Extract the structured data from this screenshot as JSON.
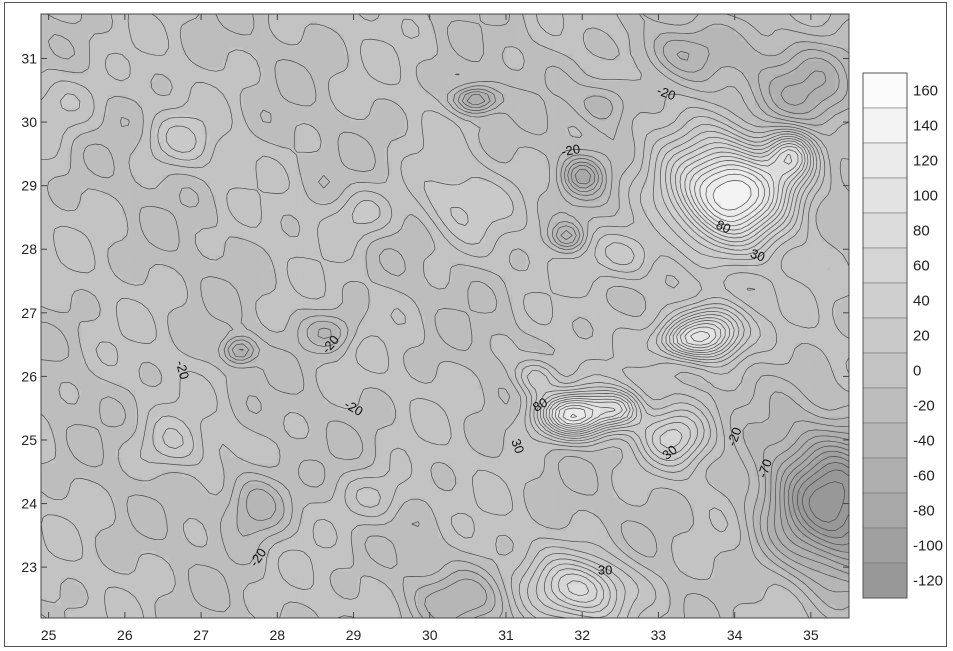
{
  "x_axis": {
    "ticks": [
      25,
      26,
      27,
      28,
      29,
      30,
      31,
      32,
      33,
      34,
      35
    ],
    "labels": [
      "25",
      "26",
      "27",
      "28",
      "29",
      "30",
      "31",
      "32",
      "33",
      "34",
      "35"
    ],
    "range": [
      24.9,
      35.5
    ]
  },
  "y_axis": {
    "ticks": [
      23,
      24,
      25,
      26,
      27,
      28,
      29,
      30,
      31
    ],
    "labels": [
      "23",
      "24",
      "25",
      "26",
      "27",
      "28",
      "29",
      "30",
      "31"
    ],
    "range": [
      22.2,
      31.7
    ]
  },
  "legend": {
    "values": [
      160,
      140,
      120,
      100,
      80,
      60,
      40,
      20,
      0,
      -20,
      -40,
      -60,
      -80,
      -100,
      -120
    ],
    "labels": [
      "160",
      "140",
      "120",
      "100",
      "80",
      "60",
      "40",
      "20",
      "0",
      "-20",
      "-40",
      "-60",
      "-80",
      "-100",
      "-120"
    ],
    "colors": [
      "#fbfbfb",
      "#f3f3f3",
      "#ebebeb",
      "#e3e3e3",
      "#dcdcdc",
      "#d5d5d5",
      "#cfcfcf",
      "#c9c9c9",
      "#c3c3c3",
      "#bdbdbd",
      "#b6b6b6",
      "#afafaf",
      "#a8a8a8",
      "#a0a0a0",
      "#989898"
    ]
  },
  "contour_labels": [
    {
      "text": "-20",
      "lon": 33.1,
      "lat": 30.45,
      "rot": 20
    },
    {
      "text": "-20",
      "lon": 31.85,
      "lat": 29.55,
      "rot": -10
    },
    {
      "text": "80",
      "lon": 33.85,
      "lat": 28.35,
      "rot": 25
    },
    {
      "text": "30",
      "lon": 34.3,
      "lat": 27.9,
      "rot": 20
    },
    {
      "text": "-20",
      "lon": 28.7,
      "lat": 26.5,
      "rot": -50
    },
    {
      "text": "-20",
      "lon": 26.75,
      "lat": 26.1,
      "rot": 75
    },
    {
      "text": "-20",
      "lon": 29.0,
      "lat": 25.5,
      "rot": 30
    },
    {
      "text": "80",
      "lon": 31.45,
      "lat": 25.55,
      "rot": -30
    },
    {
      "text": "30",
      "lon": 31.15,
      "lat": 24.9,
      "rot": 70
    },
    {
      "text": "30",
      "lon": 33.15,
      "lat": 24.8,
      "rot": -40
    },
    {
      "text": "-20",
      "lon": 34.0,
      "lat": 25.05,
      "rot": -70
    },
    {
      "text": "-70",
      "lon": 34.4,
      "lat": 24.55,
      "rot": -70
    },
    {
      "text": "-20",
      "lon": 27.75,
      "lat": 23.15,
      "rot": -55
    },
    {
      "text": "30",
      "lon": 32.3,
      "lat": 22.95,
      "rot": 0
    }
  ],
  "anomalies": [
    {
      "lon": 33.95,
      "lat": 28.9,
      "amp": 150,
      "sx": 0.55,
      "sy": 0.55
    },
    {
      "lon": 34.75,
      "lat": 29.5,
      "amp": 80,
      "sx": 0.22,
      "sy": 0.28
    },
    {
      "lon": 33.7,
      "lat": 26.7,
      "amp": 110,
      "sx": 0.3,
      "sy": 0.3
    },
    {
      "lon": 33.3,
      "lat": 26.55,
      "amp": 60,
      "sx": 0.25,
      "sy": 0.2
    },
    {
      "lon": 31.9,
      "lat": 25.4,
      "amp": 130,
      "sx": 0.35,
      "sy": 0.25
    },
    {
      "lon": 32.5,
      "lat": 25.5,
      "amp": 60,
      "sx": 0.2,
      "sy": 0.2
    },
    {
      "lon": 32.0,
      "lat": 22.65,
      "amp": 80,
      "sx": 0.45,
      "sy": 0.35
    },
    {
      "lon": 33.2,
      "lat": 25.05,
      "amp": 55,
      "sx": 0.3,
      "sy": 0.3
    },
    {
      "lon": 35.3,
      "lat": 24.0,
      "amp": -120,
      "sx": 0.6,
      "sy": 0.8
    },
    {
      "lon": 35.0,
      "lat": 30.6,
      "amp": -50,
      "sx": 0.6,
      "sy": 0.6
    },
    {
      "lon": 30.6,
      "lat": 30.35,
      "amp": -70,
      "sx": 0.2,
      "sy": 0.15
    },
    {
      "lon": 32.0,
      "lat": 29.15,
      "amp": -55,
      "sx": 0.18,
      "sy": 0.2
    },
    {
      "lon": 31.8,
      "lat": 28.2,
      "amp": -45,
      "sx": 0.15,
      "sy": 0.15
    },
    {
      "lon": 27.5,
      "lat": 26.4,
      "amp": -55,
      "sx": 0.15,
      "sy": 0.15
    },
    {
      "lon": 27.7,
      "lat": 24.0,
      "amp": -45,
      "sx": 0.3,
      "sy": 0.4
    },
    {
      "lon": 26.6,
      "lat": 24.9,
      "amp": 25,
      "sx": 0.3,
      "sy": 0.3
    },
    {
      "lon": 29.3,
      "lat": 24.1,
      "amp": 25,
      "sx": 0.35,
      "sy": 0.3
    },
    {
      "lon": 30.3,
      "lat": 28.7,
      "amp": 30,
      "sx": 0.4,
      "sy": 0.45
    },
    {
      "lon": 29.1,
      "lat": 28.55,
      "amp": 25,
      "sx": 0.3,
      "sy": 0.3
    },
    {
      "lon": 26.7,
      "lat": 29.7,
      "amp": 25,
      "sx": 0.35,
      "sy": 0.3
    },
    {
      "lon": 28.7,
      "lat": 26.7,
      "amp": -30,
      "sx": 0.25,
      "sy": 0.2
    },
    {
      "lon": 30.4,
      "lat": 22.5,
      "amp": -30,
      "sx": 0.5,
      "sy": 0.3
    },
    {
      "lon": 32.3,
      "lat": 30.3,
      "amp": -35,
      "sx": 0.25,
      "sy": 0.25
    },
    {
      "lon": 33.2,
      "lat": 31.1,
      "amp": -35,
      "sx": 0.4,
      "sy": 0.3
    },
    {
      "lon": 25.1,
      "lat": 30.3,
      "amp": 25,
      "sx": 0.4,
      "sy": 0.4
    },
    {
      "lon": 31.4,
      "lat": 26.0,
      "amp": 45,
      "sx": 0.2,
      "sy": 0.2
    },
    {
      "lon": 32.6,
      "lat": 27.9,
      "amp": 40,
      "sx": 0.35,
      "sy": 0.3
    }
  ]
}
